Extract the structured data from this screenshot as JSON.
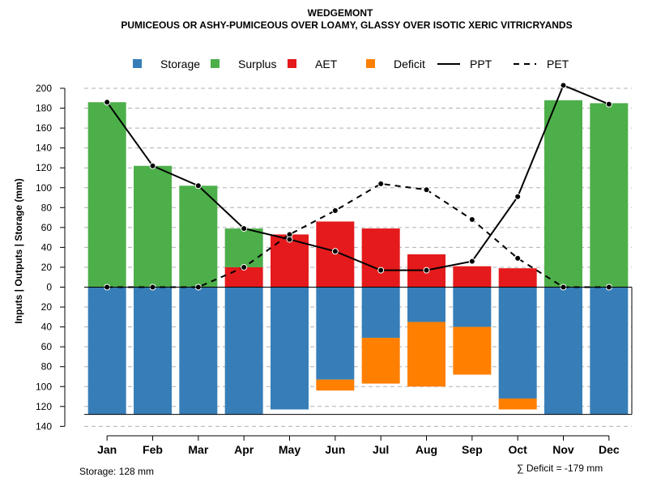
{
  "chart_data": {
    "type": "bar",
    "title": "WEDGEMONT",
    "subtitle": "PUMICEOUS OR ASHY-PUMICEOUS OVER LOAMY, GLASSY OVER ISOTIC XERIC VITRICRYANDS",
    "ylabel": "Inputs | Outputs | Storage     (mm)",
    "ylim": [
      -140,
      210
    ],
    "yticks": [
      200,
      180,
      160,
      140,
      120,
      100,
      80,
      60,
      40,
      20,
      0,
      -20,
      -40,
      -60,
      -80,
      -100,
      -120,
      -140
    ],
    "ytick_labels": [
      "200",
      "180",
      "160",
      "140",
      "120",
      "100",
      "80",
      "60",
      "40",
      "20",
      "0",
      "20",
      "40",
      "60",
      "80",
      "100",
      "120",
      "140"
    ],
    "categories": [
      "Jan",
      "Feb",
      "Mar",
      "Apr",
      "May",
      "Jun",
      "Jul",
      "Aug",
      "Sep",
      "Oct",
      "Nov",
      "Dec"
    ],
    "series": [
      {
        "name": "Storage",
        "color": "#377EB8",
        "values": [
          -128,
          -128,
          -128,
          -128,
          -123,
          -93,
          -51,
          -35,
          -40,
          -112,
          -128,
          -128
        ]
      },
      {
        "name": "Surplus",
        "color": "#4DAF4A",
        "values": [
          186,
          122,
          102,
          39,
          0,
          0,
          0,
          0,
          0,
          0,
          188,
          185
        ]
      },
      {
        "name": "AET",
        "color": "#E41A1C",
        "values": [
          0,
          0,
          0,
          20,
          53,
          66,
          59,
          33,
          21,
          19,
          0,
          0
        ]
      },
      {
        "name": "Deficit",
        "color": "#FF7F00",
        "values": [
          0,
          0,
          0,
          0,
          0,
          -11,
          -46,
          -65,
          -48,
          -11,
          0,
          0
        ]
      },
      {
        "name": "PPT",
        "color": "#000000",
        "line_style": "solid",
        "values": [
          186,
          122,
          102,
          59,
          48,
          36,
          17,
          17,
          26,
          91,
          203,
          184
        ]
      },
      {
        "name": "PET",
        "color": "#000000",
        "line_style": "dashed",
        "values": [
          0,
          0,
          0,
          20,
          53,
          77,
          104,
          98,
          68,
          29,
          0,
          0
        ]
      }
    ],
    "legend": [
      "Storage",
      "Surplus",
      "AET",
      "Deficit",
      "PPT",
      "PET"
    ],
    "legend_position": "top",
    "grid": true,
    "storage_note": "Storage: 128 mm",
    "deficit_note": "∑ Deficit = -179 mm"
  }
}
